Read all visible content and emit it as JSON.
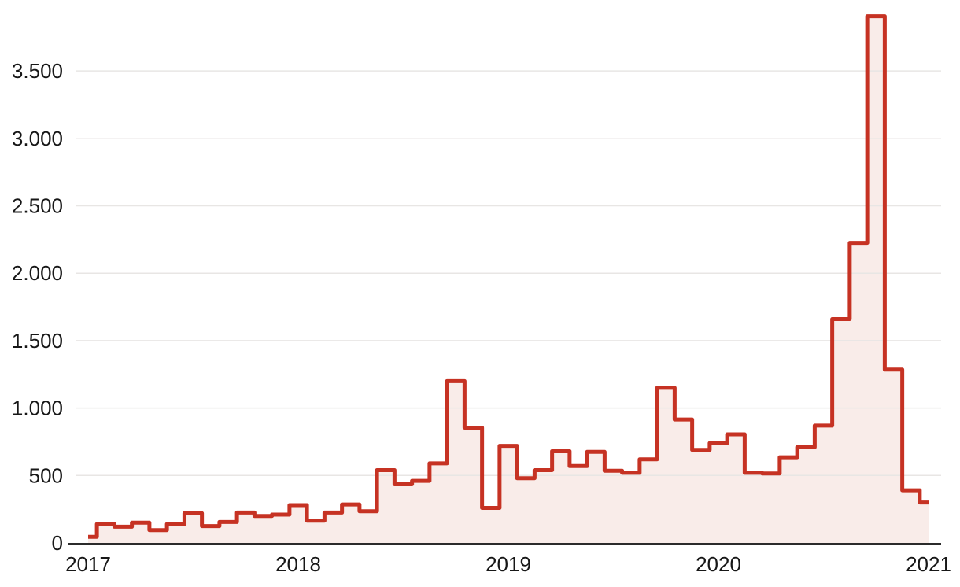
{
  "chart_data": {
    "type": "area",
    "variant": "step-centered-line-with-fill",
    "title": "",
    "frequency": "monthly",
    "x": [
      "2017-01",
      "2017-02",
      "2017-03",
      "2017-04",
      "2017-05",
      "2017-06",
      "2017-07",
      "2017-08",
      "2017-09",
      "2017-10",
      "2017-11",
      "2017-12",
      "2018-01",
      "2018-02",
      "2018-03",
      "2018-04",
      "2018-05",
      "2018-06",
      "2018-07",
      "2018-08",
      "2018-09",
      "2018-10",
      "2018-11",
      "2018-12",
      "2019-01",
      "2019-02",
      "2019-03",
      "2019-04",
      "2019-05",
      "2019-06",
      "2019-07",
      "2019-08",
      "2019-09",
      "2019-10",
      "2019-11",
      "2019-12",
      "2020-01",
      "2020-02",
      "2020-03",
      "2020-04",
      "2020-05",
      "2020-06",
      "2020-07",
      "2020-08",
      "2020-09",
      "2020-10",
      "2020-11",
      "2020-12",
      "2021-01"
    ],
    "values": [
      45,
      140,
      120,
      150,
      95,
      140,
      220,
      125,
      155,
      225,
      200,
      210,
      280,
      165,
      225,
      285,
      235,
      540,
      435,
      460,
      590,
      1200,
      855,
      260,
      720,
      480,
      540,
      680,
      570,
      675,
      535,
      520,
      620,
      1150,
      915,
      690,
      740,
      805,
      520,
      515,
      635,
      710,
      870,
      1660,
      2225,
      3905,
      1285,
      390,
      300
    ],
    "xlabel": "",
    "ylabel": "",
    "ylim": [
      0,
      3950
    ],
    "grid": "horizontal",
    "legend_position": "none",
    "y_ticks": [
      {
        "value": 0,
        "label": "0"
      },
      {
        "value": 500,
        "label": "500"
      },
      {
        "value": 1000,
        "label": "1.000"
      },
      {
        "value": 1500,
        "label": "1.500"
      },
      {
        "value": 2000,
        "label": "2.000"
      },
      {
        "value": 2500,
        "label": "2.500"
      },
      {
        "value": 3000,
        "label": "3.000"
      },
      {
        "value": 3500,
        "label": "3.500"
      }
    ],
    "x_ticks": [
      {
        "index": 0,
        "label": "2017"
      },
      {
        "index": 12,
        "label": "2018"
      },
      {
        "index": 24,
        "label": "2019"
      },
      {
        "index": 36,
        "label": "2020"
      },
      {
        "index": 48,
        "label": "2021"
      }
    ],
    "colors": {
      "line": "#c63223",
      "fill": "#f9ece9",
      "grid": "#e8e6e4",
      "axis": "#2b2b2b",
      "text": "#171717",
      "background": "#ffffff"
    }
  }
}
